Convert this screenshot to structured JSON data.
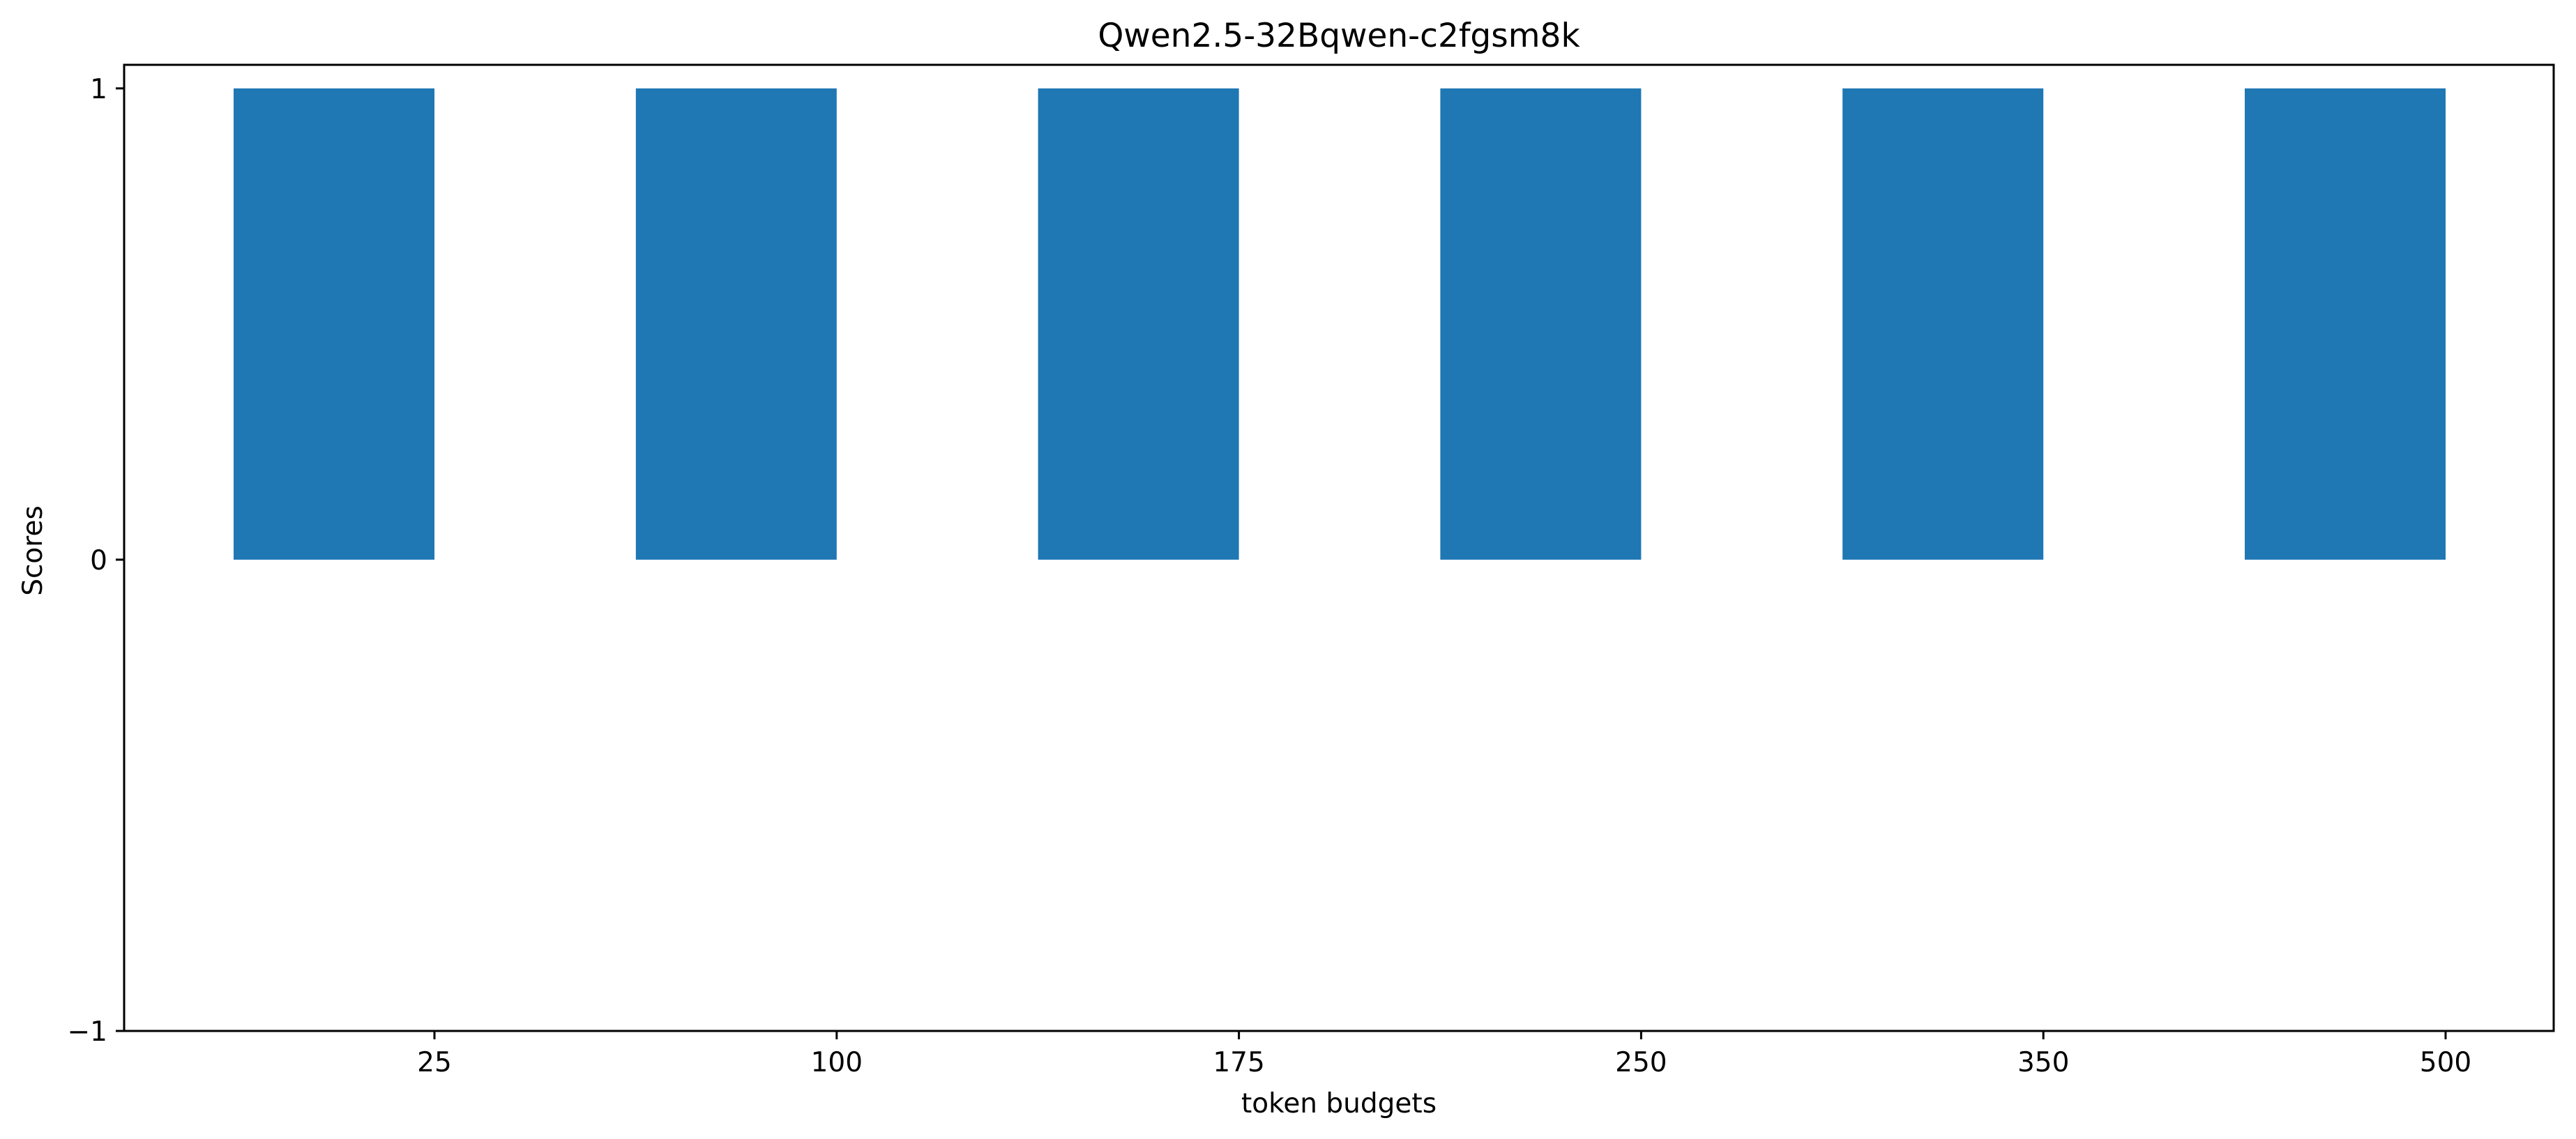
{
  "chart_data": {
    "type": "bar",
    "title": "Qwen2.5-32Bqwen-c2fgsm8k",
    "xlabel": "token budgets",
    "ylabel": "Scores",
    "categories": [
      "25",
      "100",
      "175",
      "250",
      "350",
      "500"
    ],
    "values": [
      1,
      1,
      1,
      1,
      1,
      1
    ],
    "ylim": [
      -1,
      1.05
    ],
    "yticks": [
      -1,
      0,
      1
    ],
    "ytick_labels": [
      "−1",
      "0",
      "1"
    ],
    "grid": false,
    "bar_color": "#1f77b4"
  }
}
